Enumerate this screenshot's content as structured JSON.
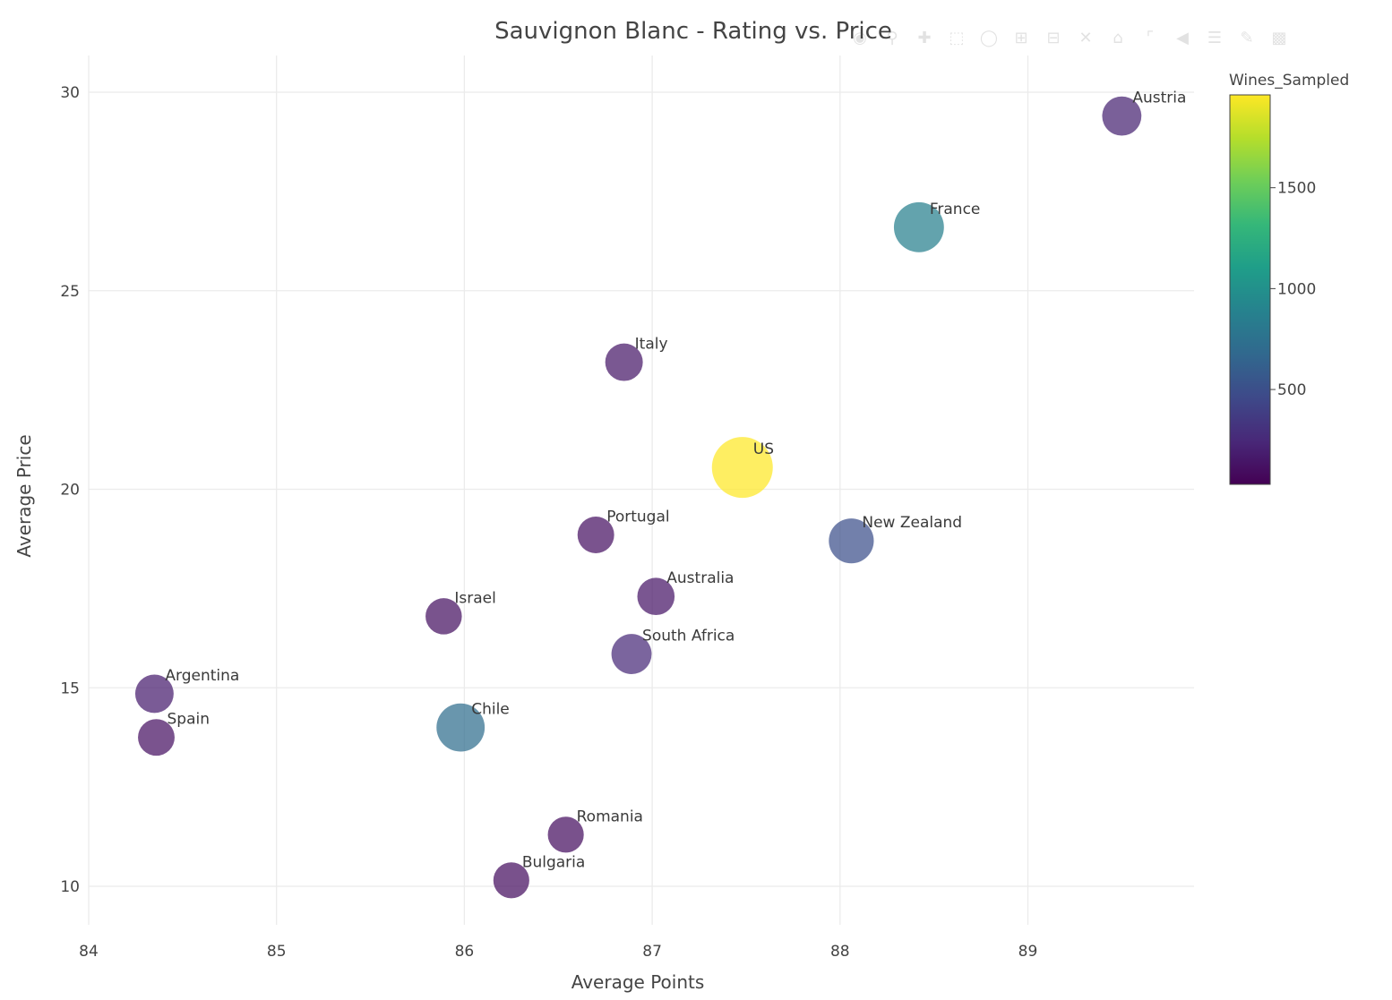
{
  "chart_data": {
    "type": "scatter",
    "title": "Sauvignon Blanc - Rating vs. Price",
    "xlabel": "Average Points",
    "ylabel": "Average Price",
    "xlim": [
      84,
      89.9
    ],
    "ylim": [
      9.0,
      31.0
    ],
    "x_ticks": [
      84,
      85,
      86,
      87,
      88,
      89
    ],
    "y_ticks": [
      10,
      15,
      20,
      25,
      30
    ],
    "grid": true,
    "colorbar": {
      "title": "Wines_Sampled",
      "range": [
        30,
        1960
      ],
      "ticks": [
        500,
        1000,
        1500
      ],
      "colorscale": "viridis"
    },
    "points": [
      {
        "label": "Austria",
        "x": 89.5,
        "y": 29.4,
        "wines_sampled": 210
      },
      {
        "label": "France",
        "x": 88.42,
        "y": 26.6,
        "wines_sampled": 860
      },
      {
        "label": "Italy",
        "x": 86.85,
        "y": 23.2,
        "wines_sampled": 150
      },
      {
        "label": "US",
        "x": 87.48,
        "y": 20.55,
        "wines_sampled": 1960
      },
      {
        "label": "Portugal",
        "x": 86.7,
        "y": 18.85,
        "wines_sampled": 120
      },
      {
        "label": "New Zealand",
        "x": 88.06,
        "y": 18.7,
        "wines_sampled": 500
      },
      {
        "label": "Australia",
        "x": 87.02,
        "y": 17.3,
        "wines_sampled": 140
      },
      {
        "label": "Israel",
        "x": 85.89,
        "y": 16.8,
        "wines_sampled": 110
      },
      {
        "label": "South Africa",
        "x": 86.89,
        "y": 15.85,
        "wines_sampled": 250
      },
      {
        "label": "Argentina",
        "x": 84.35,
        "y": 14.85,
        "wines_sampled": 180
      },
      {
        "label": "Chile",
        "x": 85.98,
        "y": 14.0,
        "wines_sampled": 720
      },
      {
        "label": "Spain",
        "x": 84.36,
        "y": 13.75,
        "wines_sampled": 120
      },
      {
        "label": "Romania",
        "x": 86.54,
        "y": 11.3,
        "wines_sampled": 100
      },
      {
        "label": "Bulgaria",
        "x": 86.25,
        "y": 10.15,
        "wines_sampled": 100
      }
    ]
  },
  "modebar_icons": [
    "camera-icon",
    "zoom-icon",
    "pan-icon",
    "box-select-icon",
    "lasso-icon",
    "zoom-in-icon",
    "zoom-out-icon",
    "autoscale-icon",
    "home-icon",
    "spike-icon",
    "hover-closest-icon",
    "hover-compare-icon",
    "edit-icon",
    "plotly-logo-icon"
  ]
}
